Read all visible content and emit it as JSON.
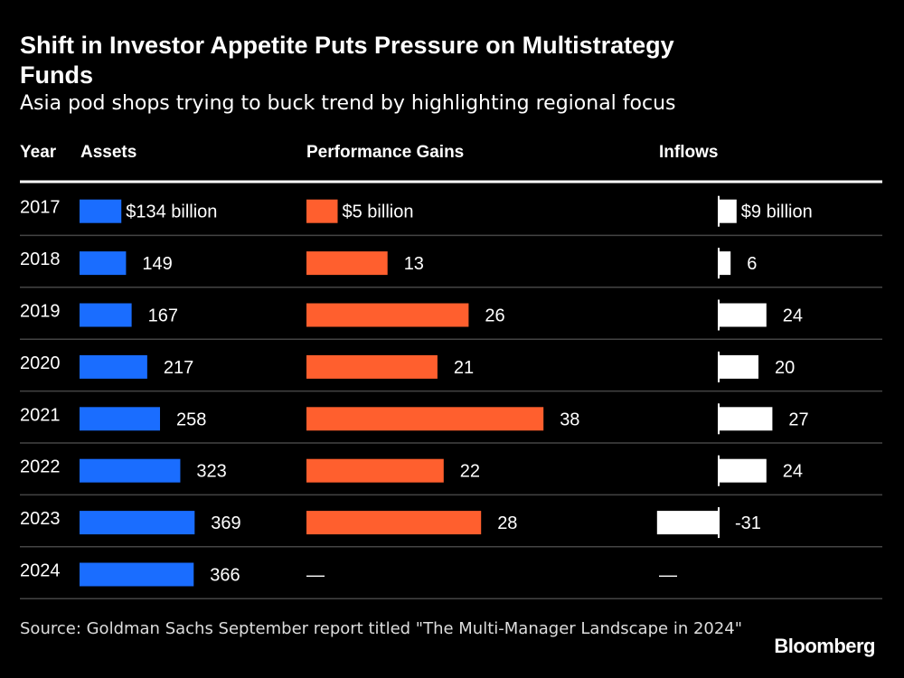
{
  "title": "Shift in Investor Appetite Puts Pressure on Multistrategy Funds",
  "subtitle": "Asia pod shops trying to buck trend by highlighting regional focus",
  "source": "Source: Goldman Sachs September report titled \"The Multi-Manager Landscape in 2024\"",
  "logo": "Bloomberg",
  "colors": {
    "assets": "#1a6dff",
    "performance": "#ff5f2e",
    "inflows": "#ffffff",
    "background": "#000000"
  },
  "chart_data": {
    "type": "table",
    "columns": [
      "Year",
      "Assets",
      "Performance Gains",
      "Inflows"
    ],
    "unit": "billion USD",
    "years": [
      "2017",
      "2018",
      "2019",
      "2020",
      "2021",
      "2022",
      "2023",
      "2024"
    ],
    "series": [
      {
        "name": "Assets",
        "values": [
          134,
          149,
          167,
          217,
          258,
          323,
          369,
          366
        ],
        "labels": [
          "$134 billion",
          "149",
          "167",
          "217",
          "258",
          "323",
          "369",
          "366"
        ]
      },
      {
        "name": "Performance Gains",
        "values": [
          5,
          13,
          26,
          21,
          38,
          22,
          28,
          null
        ],
        "labels": [
          "$5 billion",
          "13",
          "26",
          "21",
          "38",
          "22",
          "28",
          "—"
        ]
      },
      {
        "name": "Inflows",
        "values": [
          9,
          6,
          24,
          20,
          27,
          24,
          -31,
          null
        ],
        "labels": [
          "$9 billion",
          "6",
          "24",
          "20",
          "27",
          "24",
          "-31",
          "—"
        ]
      }
    ]
  }
}
